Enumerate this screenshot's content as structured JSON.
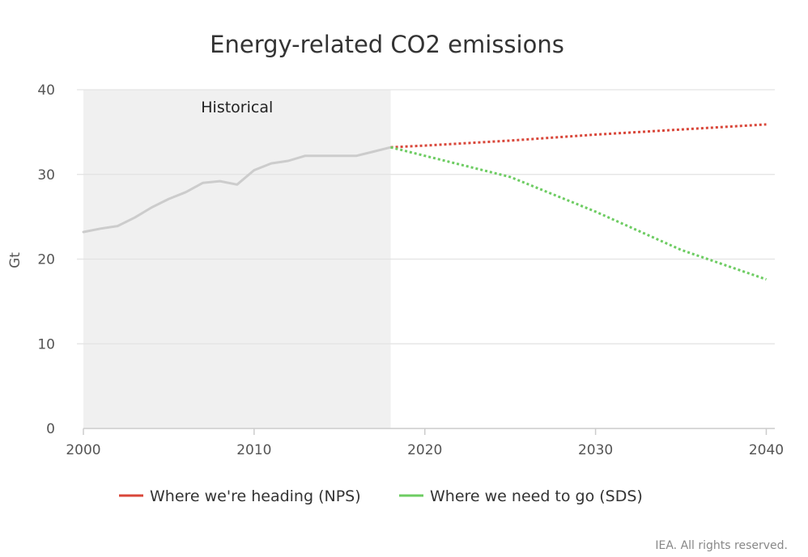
{
  "chart_data": {
    "type": "line",
    "title": "Energy-related CO2 emissions",
    "ylabel": "Gt",
    "xlabel": "",
    "xlim": [
      2000,
      2040.5
    ],
    "ylim": [
      0,
      40
    ],
    "x_ticks": [
      2000,
      2010,
      2020,
      2030,
      2040
    ],
    "y_ticks": [
      0,
      10,
      20,
      30,
      40
    ],
    "grid": true,
    "legend_position": "bottom",
    "shaded_region": {
      "label": "Historical",
      "x_start": 2000,
      "x_end": 2018,
      "color": "#f0f0f0"
    },
    "series": [
      {
        "color": "#cccccc",
        "style": "solid",
        "x": [
          2000,
          2001,
          2002,
          2003,
          2004,
          2005,
          2006,
          2007,
          2008,
          2009,
          2010,
          2011,
          2012,
          2013,
          2014,
          2015,
          2016,
          2017,
          2018
        ],
        "values": [
          23.2,
          23.6,
          23.9,
          24.9,
          26.1,
          27.1,
          27.9,
          29.0,
          29.2,
          28.8,
          30.5,
          31.3,
          31.6,
          32.2,
          32.2,
          32.2,
          32.2,
          32.7,
          33.2
        ]
      },
      {
        "name": "Where we're heading (NPS)",
        "color": "#d9473a",
        "style": "dotted",
        "x": [
          2018,
          2020,
          2025,
          2030,
          2035,
          2040
        ],
        "values": [
          33.2,
          33.4,
          34.0,
          34.7,
          35.3,
          35.9
        ]
      },
      {
        "name": "Where we need to go (SDS)",
        "color": "#6dcc62",
        "style": "dotted",
        "x": [
          2018,
          2020,
          2025,
          2030,
          2035,
          2040
        ],
        "values": [
          33.2,
          32.2,
          29.7,
          25.6,
          21.1,
          17.6
        ]
      }
    ]
  },
  "credit": "IEA. All rights reserved."
}
